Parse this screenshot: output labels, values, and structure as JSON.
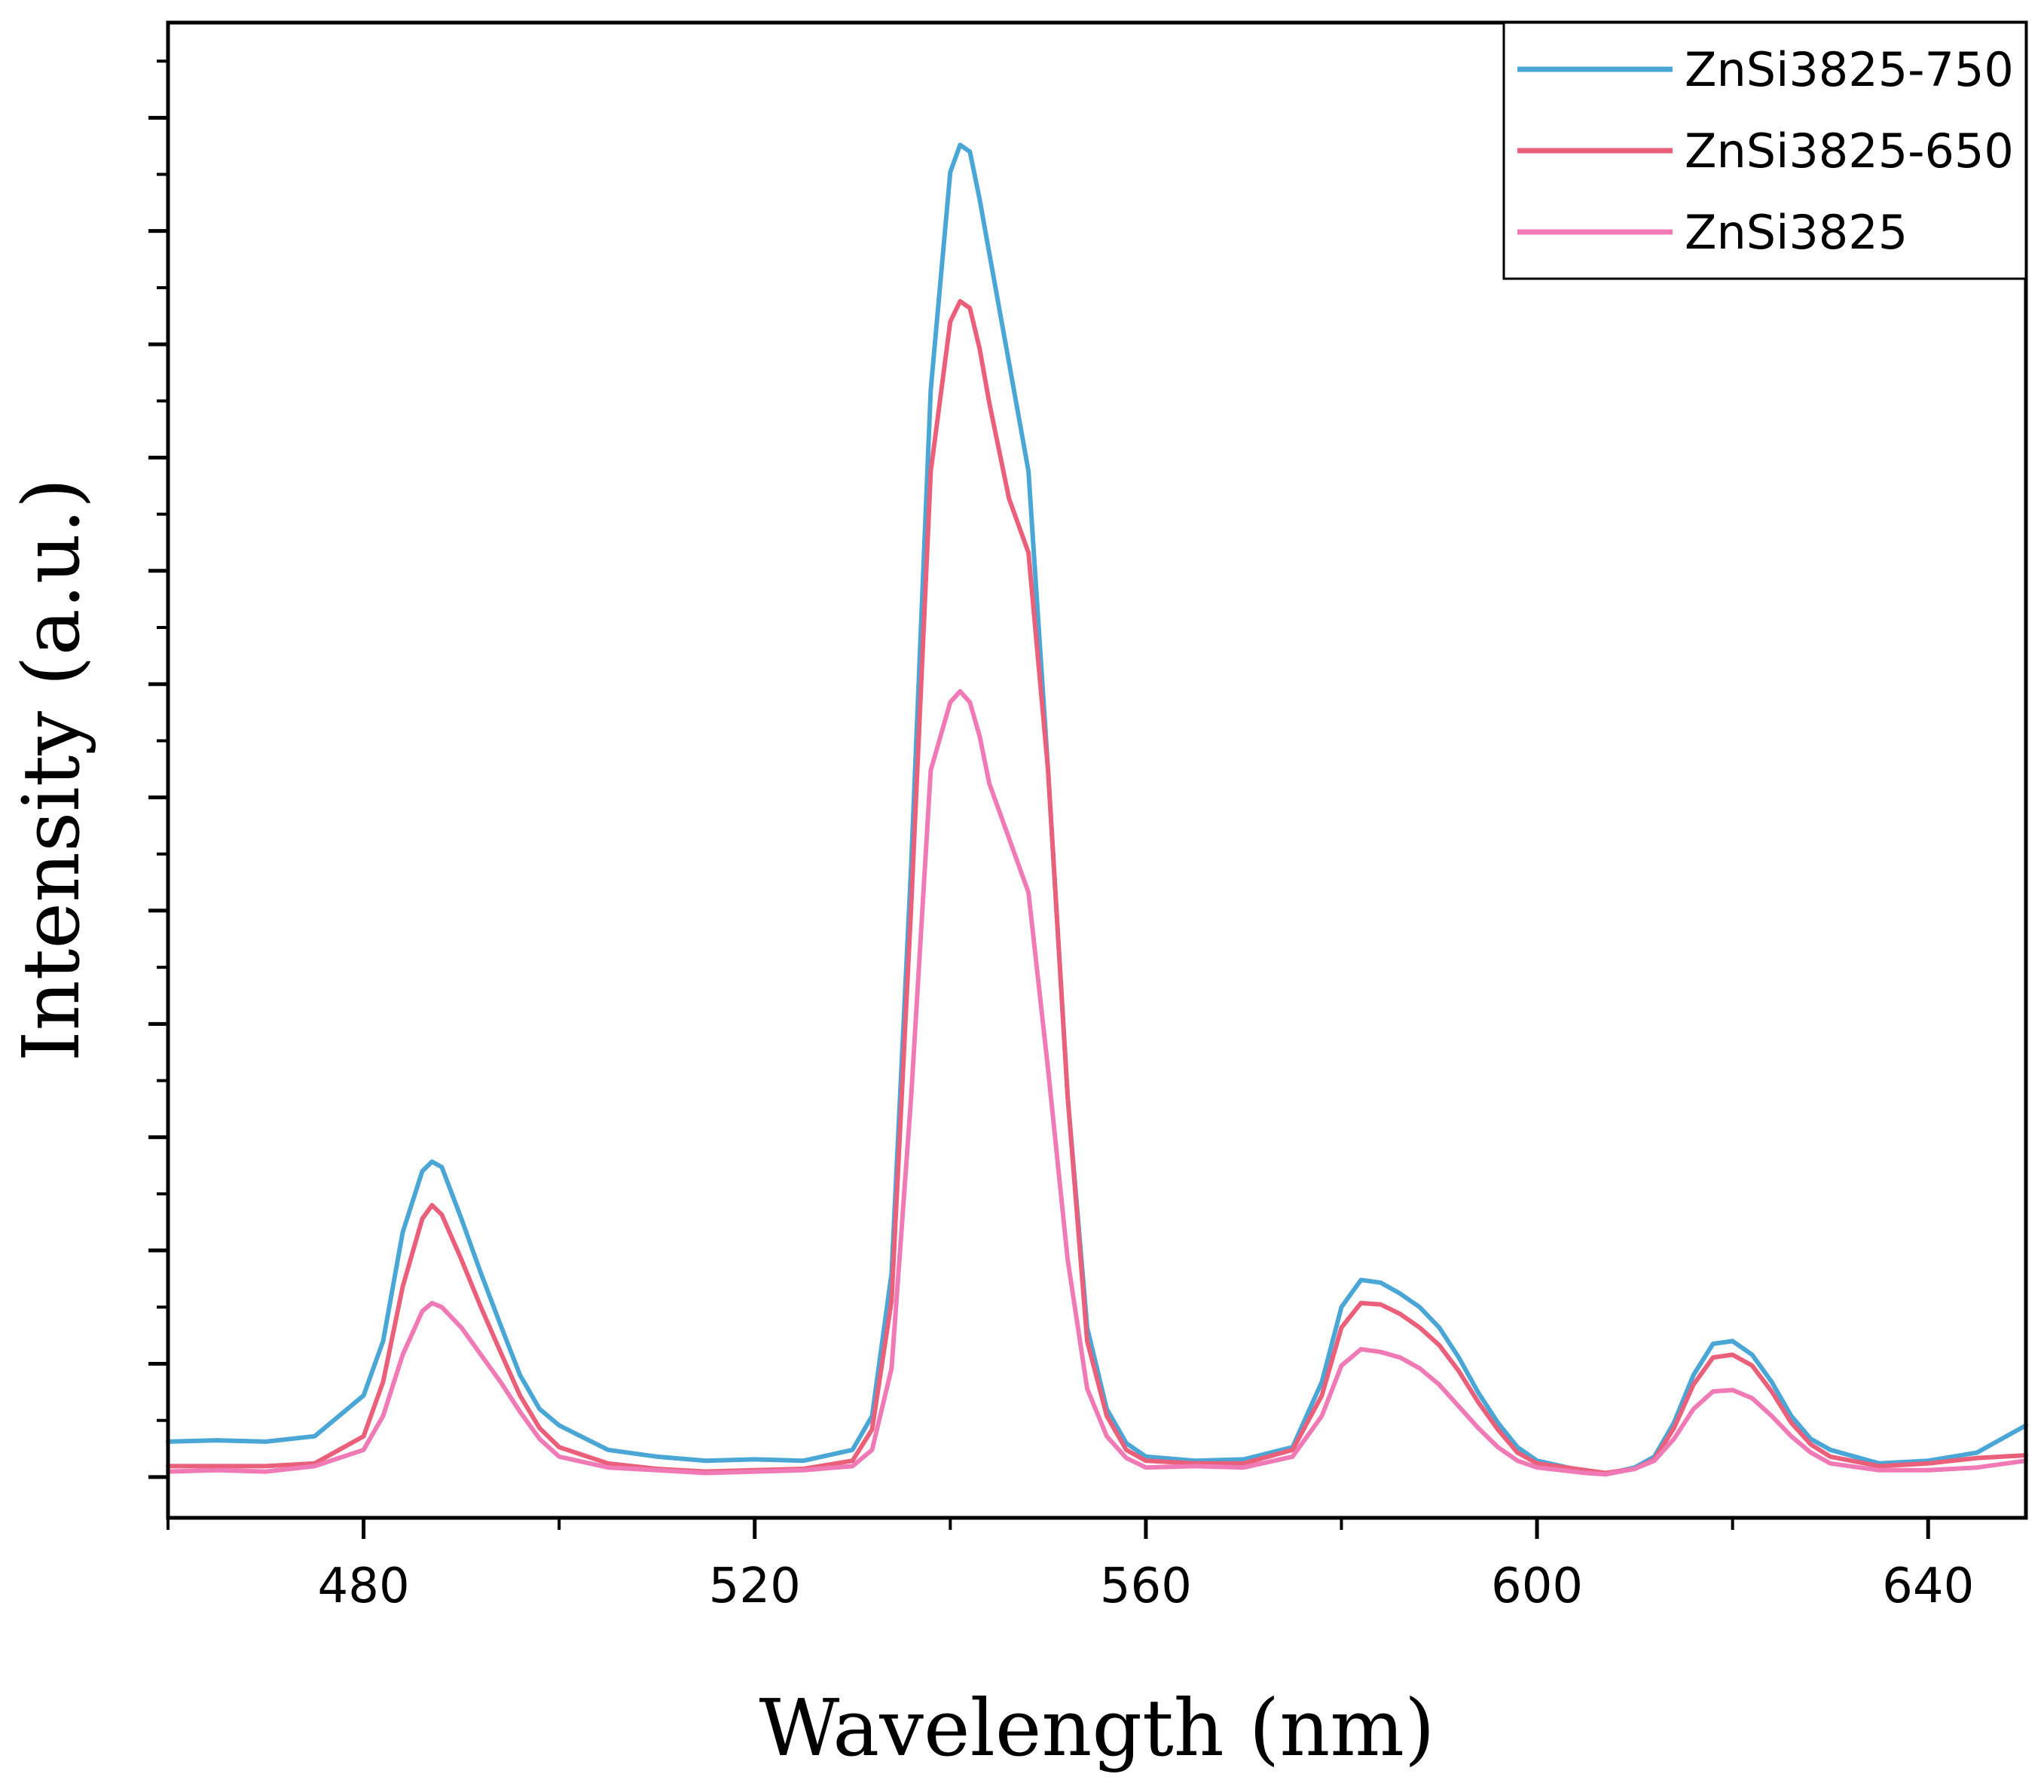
{
  "chart_data": {
    "type": "line",
    "title": "",
    "xlabel": "Wavelength (nm)",
    "ylabel": "Intensity (a.u.)",
    "xlim": [
      460,
      650
    ],
    "ylim": [
      -0.03,
      1.07
    ],
    "x_ticks": [
      480,
      520,
      560,
      600,
      640
    ],
    "x_minor_ticks": [
      460,
      500,
      540,
      580,
      620
    ],
    "y_ticks_unlabeled": [
      0,
      0.0833,
      0.1667,
      0.25,
      0.3333,
      0.4167,
      0.5,
      0.5833,
      0.6667,
      0.75,
      0.8333,
      0.9167,
      1.0
    ],
    "grid": false,
    "legend_position": "top-right",
    "series": [
      {
        "name": "ZnSi3825-750",
        "color": "#4aa6d4",
        "x": [
          460,
          465,
          470,
          475,
          480,
          482,
          484,
          486,
          487,
          488,
          490,
          492,
          494,
          496,
          498,
          500,
          505,
          510,
          515,
          520,
          525,
          530,
          532,
          534,
          536,
          538,
          540,
          541,
          542,
          543,
          544,
          546,
          548,
          550,
          552,
          554,
          556,
          558,
          560,
          565,
          570,
          575,
          578,
          580,
          582,
          584,
          586,
          588,
          590,
          592,
          594,
          596,
          598,
          600,
          605,
          607,
          610,
          612,
          614,
          616,
          618,
          620,
          622,
          624,
          626,
          628,
          630,
          635,
          640,
          645,
          650
        ],
        "y": [
          0.026,
          0.027,
          0.026,
          0.03,
          0.06,
          0.1,
          0.18,
          0.225,
          0.232,
          0.228,
          0.19,
          0.15,
          0.112,
          0.075,
          0.05,
          0.038,
          0.02,
          0.015,
          0.012,
          0.013,
          0.012,
          0.02,
          0.045,
          0.15,
          0.45,
          0.8,
          0.96,
          0.98,
          0.975,
          0.94,
          0.9,
          0.82,
          0.74,
          0.52,
          0.28,
          0.11,
          0.05,
          0.025,
          0.015,
          0.012,
          0.013,
          0.022,
          0.07,
          0.125,
          0.145,
          0.143,
          0.135,
          0.125,
          0.11,
          0.088,
          0.062,
          0.04,
          0.022,
          0.012,
          0.004,
          0.002,
          0.007,
          0.015,
          0.04,
          0.075,
          0.098,
          0.1,
          0.09,
          0.07,
          0.045,
          0.028,
          0.02,
          0.01,
          0.012,
          0.018,
          0.038
        ]
      },
      {
        "name": "ZnSi3825-650",
        "color": "#ea5f7a",
        "x": [
          460,
          465,
          470,
          475,
          480,
          482,
          484,
          486,
          487,
          488,
          490,
          492,
          494,
          496,
          498,
          500,
          505,
          510,
          515,
          520,
          525,
          530,
          532,
          534,
          536,
          538,
          540,
          541,
          542,
          543,
          544,
          546,
          548,
          550,
          552,
          554,
          556,
          558,
          560,
          565,
          570,
          575,
          578,
          580,
          582,
          584,
          586,
          588,
          590,
          592,
          594,
          596,
          598,
          600,
          605,
          607,
          610,
          612,
          614,
          616,
          618,
          620,
          622,
          624,
          626,
          628,
          630,
          635,
          640,
          645,
          650
        ],
        "y": [
          0.008,
          0.008,
          0.008,
          0.01,
          0.03,
          0.07,
          0.14,
          0.19,
          0.2,
          0.193,
          0.16,
          0.125,
          0.092,
          0.06,
          0.036,
          0.022,
          0.01,
          0.006,
          0.004,
          0.005,
          0.006,
          0.012,
          0.035,
          0.13,
          0.42,
          0.74,
          0.85,
          0.865,
          0.86,
          0.83,
          0.79,
          0.72,
          0.68,
          0.52,
          0.28,
          0.1,
          0.045,
          0.02,
          0.012,
          0.01,
          0.01,
          0.02,
          0.06,
          0.11,
          0.128,
          0.127,
          0.12,
          0.11,
          0.097,
          0.078,
          0.055,
          0.035,
          0.018,
          0.01,
          0.005,
          0.003,
          0.006,
          0.013,
          0.036,
          0.068,
          0.088,
          0.09,
          0.082,
          0.063,
          0.04,
          0.024,
          0.015,
          0.008,
          0.01,
          0.014,
          0.016
        ]
      },
      {
        "name": "ZnSi3825",
        "color": "#f07ab6",
        "x": [
          460,
          465,
          470,
          475,
          480,
          482,
          484,
          486,
          487,
          488,
          490,
          492,
          494,
          496,
          498,
          500,
          505,
          510,
          515,
          520,
          525,
          530,
          532,
          534,
          536,
          538,
          540,
          541,
          542,
          543,
          544,
          546,
          548,
          550,
          552,
          554,
          556,
          558,
          560,
          565,
          570,
          575,
          578,
          580,
          582,
          584,
          586,
          588,
          590,
          592,
          594,
          596,
          598,
          600,
          605,
          607,
          610,
          612,
          614,
          616,
          618,
          620,
          622,
          624,
          626,
          628,
          630,
          635,
          640,
          645,
          650
        ],
        "y": [
          0.004,
          0.005,
          0.004,
          0.008,
          0.02,
          0.045,
          0.09,
          0.122,
          0.128,
          0.125,
          0.11,
          0.09,
          0.07,
          0.048,
          0.028,
          0.015,
          0.007,
          0.005,
          0.003,
          0.004,
          0.005,
          0.008,
          0.02,
          0.08,
          0.28,
          0.52,
          0.57,
          0.578,
          0.57,
          0.545,
          0.51,
          0.47,
          0.43,
          0.3,
          0.16,
          0.065,
          0.03,
          0.014,
          0.007,
          0.008,
          0.007,
          0.015,
          0.045,
          0.082,
          0.094,
          0.092,
          0.088,
          0.08,
          0.068,
          0.052,
          0.036,
          0.022,
          0.012,
          0.007,
          0.003,
          0.002,
          0.006,
          0.012,
          0.028,
          0.05,
          0.063,
          0.064,
          0.058,
          0.045,
          0.03,
          0.018,
          0.01,
          0.005,
          0.005,
          0.007,
          0.012
        ]
      }
    ]
  }
}
